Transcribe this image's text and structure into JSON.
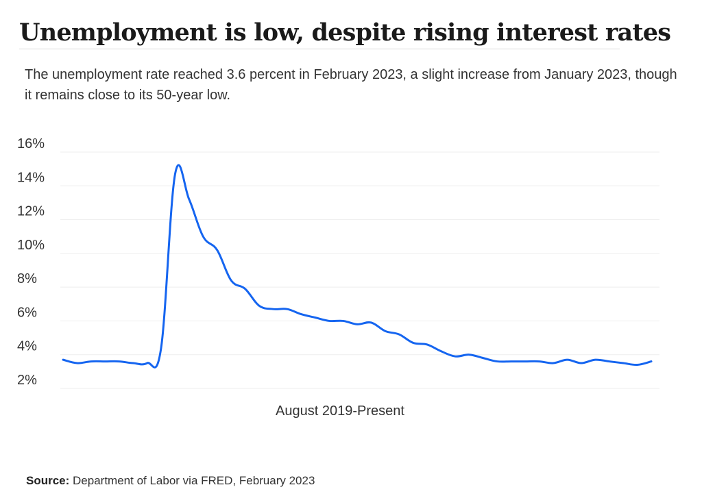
{
  "header": {
    "title": "Unemployment is low, despite rising interest rates",
    "subtitle": "The unemployment rate reached 3.6 percent in February 2023, a slight increase from January 2023, though it remains close to its 50-year low."
  },
  "footer": {
    "source_label": "Source:",
    "source_text": "Department of Labor via FRED, February 2023"
  },
  "chart_data": {
    "type": "line",
    "title": "Unemployment is low, despite rising interest rates",
    "subtitle": "The unemployment rate reached 3.6 percent in February 2023, a slight increase from January 2023, though it remains close to its 50-year low.",
    "xlabel": "August 2019-Present",
    "ylabel": "",
    "ylim": [
      2,
      16
    ],
    "yticks": [
      2,
      4,
      6,
      8,
      10,
      12,
      14,
      16
    ],
    "ytick_labels": [
      "2%",
      "4%",
      "6%",
      "8%",
      "10%",
      "12%",
      "14%",
      "16%"
    ],
    "grid": true,
    "legend": "none",
    "line_color": "#1565f0",
    "x": [
      "2019-08",
      "2019-09",
      "2019-10",
      "2019-11",
      "2019-12",
      "2020-01",
      "2020-02",
      "2020-03",
      "2020-04",
      "2020-05",
      "2020-06",
      "2020-07",
      "2020-08",
      "2020-09",
      "2020-10",
      "2020-11",
      "2020-12",
      "2021-01",
      "2021-02",
      "2021-03",
      "2021-04",
      "2021-05",
      "2021-06",
      "2021-07",
      "2021-08",
      "2021-09",
      "2021-10",
      "2021-11",
      "2021-12",
      "2022-01",
      "2022-02",
      "2022-03",
      "2022-04",
      "2022-05",
      "2022-06",
      "2022-07",
      "2022-08",
      "2022-09",
      "2022-10",
      "2022-11",
      "2022-12",
      "2023-01",
      "2023-02"
    ],
    "series": [
      {
        "values": [
          3.7,
          3.5,
          3.6,
          3.6,
          3.6,
          3.5,
          3.5,
          4.4,
          14.7,
          13.2,
          11.0,
          10.2,
          8.4,
          7.9,
          6.9,
          6.7,
          6.7,
          6.4,
          6.2,
          6.0,
          6.0,
          5.8,
          5.9,
          5.4,
          5.2,
          4.7,
          4.6,
          4.2,
          3.9,
          4.0,
          3.8,
          3.6,
          3.6,
          3.6,
          3.6,
          3.5,
          3.7,
          3.5,
          3.7,
          3.6,
          3.5,
          3.4,
          3.6
        ]
      }
    ]
  }
}
